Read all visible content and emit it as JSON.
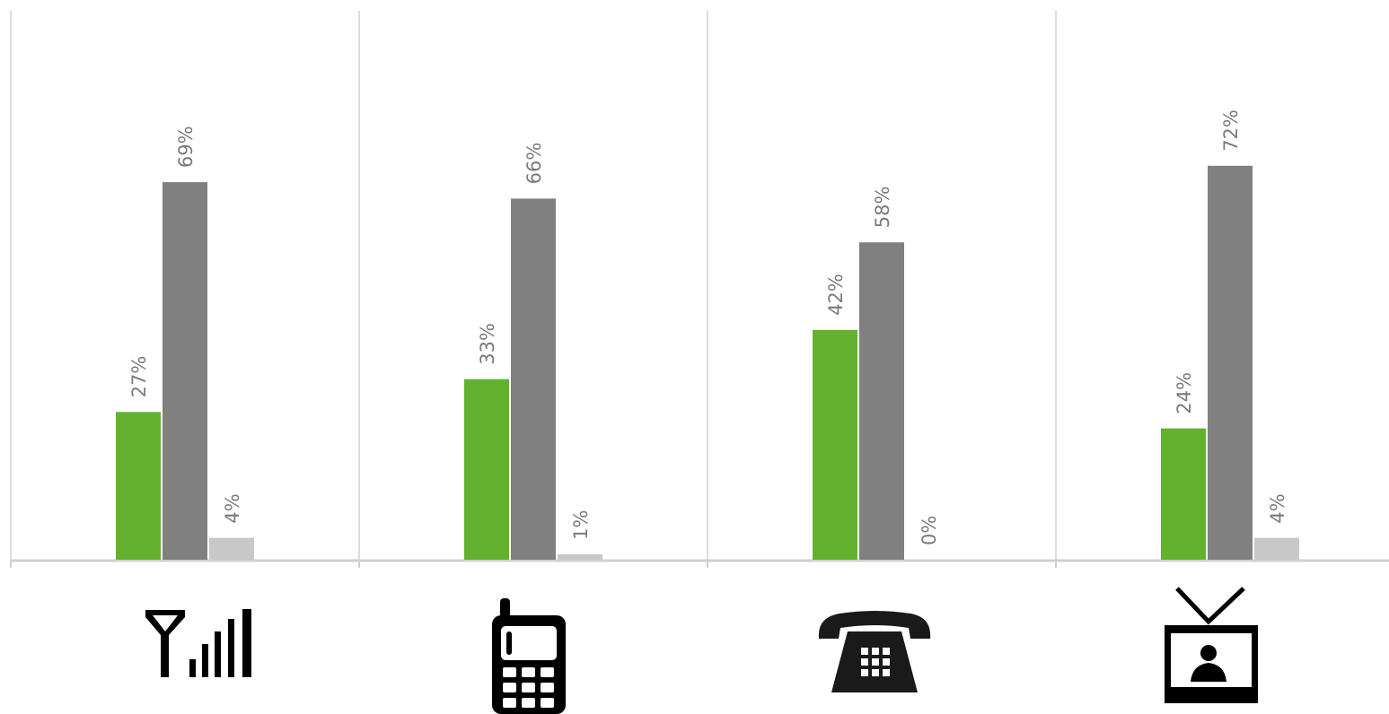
{
  "chart_data": {
    "type": "bar",
    "categories": [
      "mobile-signal-icon",
      "mobile-phone-icon",
      "landline-phone-icon",
      "television-icon"
    ],
    "series": [
      {
        "values": [
          27,
          33,
          42,
          24
        ],
        "color": "#62b22f"
      },
      {
        "values": [
          69,
          66,
          58,
          72
        ],
        "color": "#808080"
      },
      {
        "values": [
          4,
          1,
          0,
          4
        ],
        "color": "#c8c8c8"
      }
    ],
    "data_labels": [
      [
        "27%",
        "33%",
        "42%",
        "24%"
      ],
      [
        "69%",
        "66%",
        "58%",
        "72%"
      ],
      [
        "4%",
        "1%",
        "0%",
        "4%"
      ]
    ],
    "ylim": [
      0,
      100
    ],
    "grid": "vertical separators between categories",
    "legend": "none",
    "value_format": "percent"
  }
}
